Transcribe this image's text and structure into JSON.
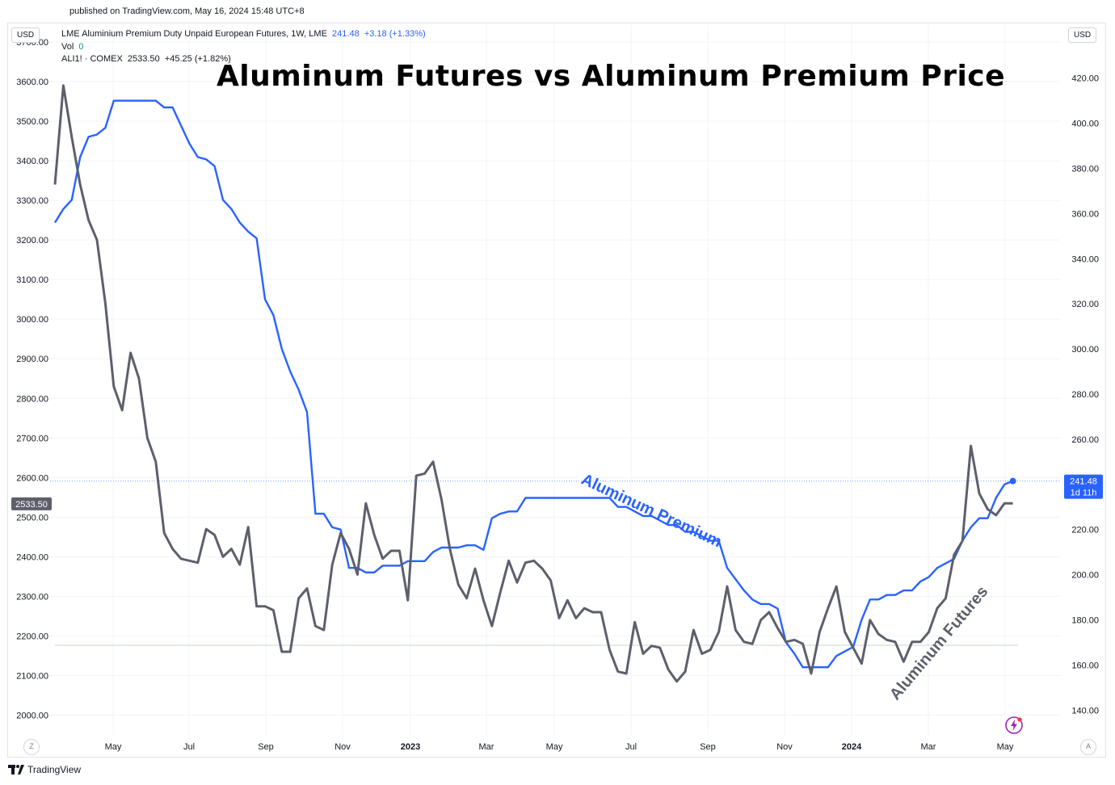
{
  "header": {
    "published": "published on TradingView.com, May 16, 2024 15:48 UTC+8",
    "currency_left": "USD",
    "currency_right": "USD"
  },
  "legend": {
    "main_name": "LME Aluminium Premium Duty Unpaid European Futures, 1W, LME",
    "main_value": "241.48",
    "main_change": "+3.18 (+1.33%)",
    "vol_label": "Vol",
    "vol_value": "0",
    "compare_name": "ALI1! · COMEX",
    "compare_value": "2533.50",
    "compare_change": "+45.25 (+1.82%)"
  },
  "footer": {
    "brand": "TradingView"
  },
  "corners": {
    "left": "Z",
    "right": "A"
  },
  "colors": {
    "premium": "#2962ff",
    "futures": "#5d606b",
    "grid": "#f0f3fa",
    "axis_text": "#131722"
  },
  "icons": {
    "brand": "tradingview-logo-icon",
    "energy": "lightning-icon"
  },
  "chart_data": {
    "type": "line",
    "title": "Aluminum Futures vs Aluminum Premium Price",
    "x_ticks": [
      "May",
      "Jul",
      "Sep",
      "Nov",
      "2023",
      "Mar",
      "May",
      "Jul",
      "Sep",
      "Nov",
      "2024",
      "Mar",
      "May"
    ],
    "left_axis": {
      "ylim": [
        1950,
        3700
      ],
      "ticks": [
        "2000.00",
        "2100.00",
        "2200.00",
        "2300.00",
        "2400.00",
        "2500.00",
        "2600.00",
        "2700.00",
        "2800.00",
        "2900.00",
        "3000.00",
        "3100.00",
        "3200.00",
        "3300.00",
        "3400.00",
        "3500.00",
        "3600.00",
        "3700.00"
      ]
    },
    "right_axis": {
      "ylim": [
        129,
        436
      ],
      "ticks": [
        "140.00",
        "160.00",
        "180.00",
        "200.00",
        "220.00",
        "240.00",
        "260.00",
        "280.00",
        "300.00",
        "320.00",
        "340.00",
        "360.00",
        "380.00",
        "400.00",
        "420.00"
      ]
    },
    "annotations": [
      {
        "text": "Aluminum Premium",
        "color": "#2962ff"
      },
      {
        "text": "Aluminum Futures",
        "color": "#5d606b"
      }
    ],
    "last_labels": {
      "premium": "241.48",
      "premium_countdown": "1d 11h",
      "futures": "2533.50"
    },
    "series": [
      {
        "name": "LME Aluminium Premium Duty Unpaid European Futures",
        "axis": "right",
        "color": "#2962ff",
        "values": [
          356,
          362,
          366,
          385,
          394,
          395,
          398,
          410,
          410,
          410,
          410,
          410,
          410,
          407,
          407,
          399,
          391,
          385,
          384,
          381,
          366,
          362,
          356,
          352,
          349,
          322,
          315,
          300,
          290,
          282,
          272,
          227,
          227,
          221,
          220,
          203,
          203,
          201,
          201,
          204,
          204,
          204,
          206,
          206,
          206,
          210,
          212,
          212,
          212,
          213,
          213,
          211,
          225,
          227,
          228,
          228,
          234,
          234,
          234,
          234,
          234,
          234,
          234,
          234,
          234,
          234,
          234,
          230,
          230,
          228,
          226,
          226,
          224,
          222,
          222,
          219,
          219,
          217,
          215,
          215,
          203,
          198,
          193,
          189,
          187,
          187,
          185,
          170,
          165,
          159,
          159,
          159,
          159,
          164,
          166,
          168,
          180,
          189,
          189,
          191,
          191,
          193,
          193,
          197,
          199,
          203,
          205,
          207,
          215,
          221,
          225,
          225,
          234,
          240,
          241.48
        ]
      },
      {
        "name": "ALI1! · COMEX",
        "axis": "left",
        "color": "#5d606b",
        "values": [
          3340,
          3590,
          3460,
          3340,
          3250,
          3200,
          3040,
          2830,
          2770,
          2915,
          2850,
          2700,
          2640,
          2460,
          2420,
          2395,
          2390,
          2385,
          2470,
          2455,
          2400,
          2420,
          2380,
          2475,
          2275,
          2275,
          2265,
          2160,
          2160,
          2295,
          2320,
          2225,
          2215,
          2380,
          2460,
          2420,
          2355,
          2535,
          2455,
          2395,
          2415,
          2415,
          2290,
          2605,
          2610,
          2640,
          2545,
          2420,
          2330,
          2295,
          2370,
          2290,
          2225,
          2310,
          2390,
          2335,
          2385,
          2390,
          2370,
          2340,
          2245,
          2290,
          2245,
          2270,
          2260,
          2260,
          2165,
          2110,
          2105,
          2235,
          2155,
          2175,
          2170,
          2115,
          2085,
          2110,
          2215,
          2155,
          2165,
          2210,
          2325,
          2215,
          2185,
          2180,
          2240,
          2260,
          2220,
          2185,
          2190,
          2180,
          2105,
          2210,
          2270,
          2325,
          2210,
          2170,
          2130,
          2240,
          2205,
          2190,
          2185,
          2135,
          2185,
          2185,
          2210,
          2270,
          2295,
          2405,
          2440,
          2680,
          2560,
          2520,
          2505,
          2535,
          2535
        ]
      }
    ]
  }
}
